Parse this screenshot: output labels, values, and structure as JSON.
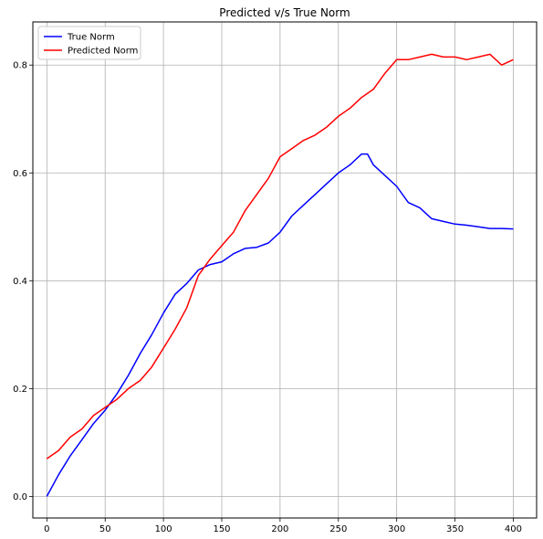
{
  "chart_data": {
    "type": "line",
    "title": "Predicted v/s True Norm",
    "xlabel": "",
    "ylabel": "",
    "xlim": [
      -12,
      420
    ],
    "ylim": [
      -0.04,
      0.88
    ],
    "xticks": [
      0,
      50,
      100,
      150,
      200,
      250,
      300,
      350,
      400
    ],
    "yticks": [
      0.0,
      0.2,
      0.4,
      0.6,
      0.8
    ],
    "xtick_labels": [
      "0",
      "50",
      "100",
      "150",
      "200",
      "250",
      "300",
      "350",
      "400"
    ],
    "ytick_labels": [
      "0.0",
      "0.2",
      "0.4",
      "0.6",
      "0.8"
    ],
    "grid": true,
    "legend_position": "top-left",
    "series": [
      {
        "name": "True Norm",
        "color": "#0000ff",
        "x": [
          0,
          10,
          20,
          30,
          40,
          50,
          60,
          70,
          80,
          90,
          100,
          110,
          120,
          130,
          140,
          150,
          160,
          170,
          180,
          190,
          200,
          210,
          220,
          230,
          240,
          250,
          260,
          265,
          270,
          275,
          280,
          290,
          300,
          310,
          320,
          330,
          340,
          350,
          360,
          370,
          380,
          390,
          400
        ],
        "y": [
          0.0,
          0.04,
          0.075,
          0.105,
          0.135,
          0.16,
          0.19,
          0.225,
          0.265,
          0.3,
          0.34,
          0.375,
          0.395,
          0.42,
          0.43,
          0.435,
          0.45,
          0.46,
          0.462,
          0.47,
          0.49,
          0.52,
          0.54,
          0.56,
          0.58,
          0.6,
          0.615,
          0.625,
          0.635,
          0.635,
          0.615,
          0.595,
          0.575,
          0.545,
          0.535,
          0.515,
          0.51,
          0.505,
          0.503,
          0.5,
          0.497,
          0.497,
          0.496
        ]
      },
      {
        "name": "Predicted Norm",
        "color": "#ff0000",
        "x": [
          0,
          10,
          20,
          30,
          40,
          50,
          60,
          70,
          80,
          90,
          100,
          110,
          120,
          130,
          140,
          150,
          160,
          170,
          180,
          190,
          200,
          210,
          220,
          230,
          240,
          250,
          260,
          270,
          280,
          290,
          300,
          310,
          320,
          330,
          340,
          350,
          360,
          370,
          380,
          390,
          400
        ],
        "y": [
          0.07,
          0.085,
          0.11,
          0.125,
          0.15,
          0.165,
          0.18,
          0.2,
          0.215,
          0.24,
          0.275,
          0.31,
          0.35,
          0.41,
          0.44,
          0.465,
          0.49,
          0.53,
          0.56,
          0.59,
          0.63,
          0.645,
          0.66,
          0.67,
          0.685,
          0.705,
          0.72,
          0.74,
          0.755,
          0.785,
          0.81,
          0.81,
          0.815,
          0.82,
          0.815,
          0.815,
          0.81,
          0.815,
          0.82,
          0.8,
          0.81
        ]
      }
    ]
  }
}
